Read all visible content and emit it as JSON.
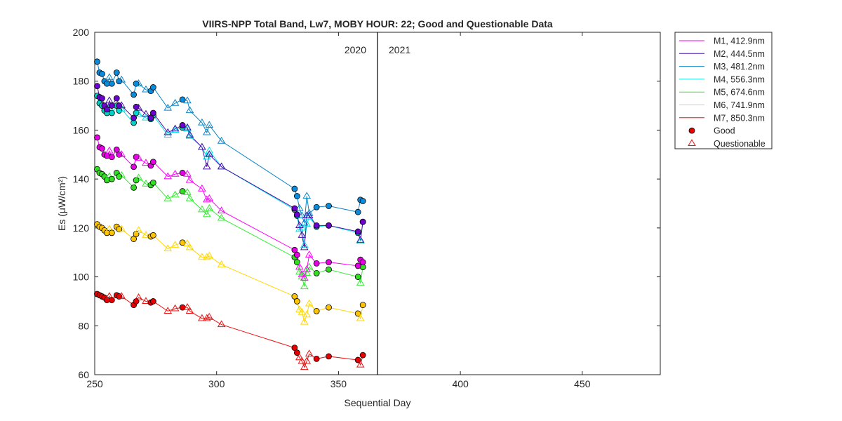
{
  "chart_data": {
    "type": "line",
    "title": "VIIRS-NPP Total Band,  Lw7, MOBY HOUR: 22;  Good and Questionable Data",
    "xlabel": "Sequential Day",
    "ylabel": "Es (μW/cm²)",
    "xlim": [
      250,
      482
    ],
    "ylim": [
      60,
      200
    ],
    "xticks": [
      250,
      300,
      350,
      400,
      450
    ],
    "yticks": [
      60,
      80,
      100,
      120,
      140,
      160,
      180,
      200
    ],
    "grid": false,
    "legend_position": "outside-right",
    "year_divider": {
      "x": 366,
      "labels": [
        "2020",
        "2021"
      ]
    },
    "legend_good": "Good",
    "legend_questionable": "Questionable",
    "marker_outline": "#000000",
    "series": [
      {
        "name": "M1, 412.9nm",
        "color": "#ff00ff",
        "fill": "#e600e6",
        "x": [
          251,
          252,
          253,
          254,
          255,
          256,
          257,
          259,
          260,
          261,
          266,
          267,
          268,
          271,
          273,
          274,
          280,
          283,
          286,
          288,
          289,
          294,
          296,
          297,
          302,
          332,
          333,
          334,
          335,
          336,
          337,
          338,
          341,
          346,
          358,
          359,
          360
        ],
        "y": [
          157,
          153,
          152.5,
          150,
          149.5,
          151.5,
          149,
          152,
          150,
          150,
          145,
          149,
          148.5,
          146.5,
          145.5,
          147,
          141,
          142,
          142.5,
          142,
          139.5,
          136,
          131.5,
          132,
          127,
          111,
          109,
          104,
          101,
          99.5,
          103,
          109,
          105.5,
          106,
          104.5,
          107,
          106
        ],
        "q": [
          0,
          0,
          0,
          0,
          0,
          1,
          0,
          0,
          0,
          1,
          0,
          0,
          1,
          1,
          0,
          0,
          1,
          1,
          0,
          1,
          1,
          1,
          1,
          1,
          1,
          0,
          0,
          1,
          1,
          1,
          1,
          1,
          0,
          0,
          0,
          0,
          0
        ]
      },
      {
        "name": "M2, 444.5nm",
        "color": "#4b0fa8",
        "fill": "#6e00d2",
        "x": [
          251,
          252,
          253,
          254,
          255,
          256,
          257,
          259,
          260,
          261,
          266,
          267,
          268,
          271,
          273,
          274,
          280,
          283,
          286,
          288,
          289,
          294,
          296,
          297,
          302,
          332,
          333,
          334,
          335,
          336,
          337,
          338,
          341,
          346,
          358,
          359,
          360
        ],
        "y": [
          178,
          173.5,
          173,
          170,
          168.5,
          172,
          170,
          173,
          170,
          170,
          165,
          169.5,
          169,
          166.5,
          165,
          167,
          159,
          160.5,
          162,
          161,
          158,
          153,
          145,
          150,
          145,
          128,
          125.5,
          121,
          117,
          112,
          125,
          125,
          121,
          121,
          118.5,
          115,
          122.5
        ],
        "q": [
          0,
          0,
          0,
          0,
          0,
          1,
          0,
          0,
          0,
          1,
          0,
          0,
          1,
          1,
          0,
          0,
          1,
          1,
          0,
          1,
          1,
          1,
          1,
          1,
          1,
          0,
          0,
          1,
          1,
          1,
          1,
          1,
          0,
          0,
          0,
          1,
          0
        ]
      },
      {
        "name": "M3, 481.2nm",
        "color": "#0b87c9",
        "fill": "#0a8cdc",
        "x": [
          251,
          252,
          253,
          254,
          255,
          256,
          257,
          259,
          260,
          261,
          266,
          267,
          268,
          271,
          273,
          274,
          280,
          283,
          286,
          288,
          289,
          294,
          296,
          297,
          302,
          332,
          333,
          334,
          335,
          336,
          337,
          338,
          341,
          346,
          358,
          359,
          360
        ],
        "y": [
          188,
          183.5,
          183,
          180,
          179,
          181.5,
          179,
          183.5,
          180,
          180.5,
          174.5,
          179,
          179,
          176.5,
          176,
          177.5,
          169,
          171,
          172.5,
          172,
          168,
          163,
          159,
          162,
          155.5,
          136,
          133,
          128,
          125,
          122,
          133,
          126,
          128.5,
          129,
          126.5,
          131.5,
          131
        ],
        "q": [
          0,
          0,
          0,
          0,
          0,
          1,
          0,
          0,
          0,
          1,
          0,
          0,
          1,
          1,
          0,
          0,
          1,
          1,
          0,
          1,
          1,
          1,
          1,
          1,
          1,
          0,
          0,
          1,
          1,
          1,
          1,
          1,
          0,
          0,
          0,
          0,
          0
        ]
      },
      {
        "name": "M4, 556.3nm",
        "color": "#00e6e6",
        "fill": "#00d2c8",
        "x": [
          251,
          252,
          253,
          254,
          255,
          256,
          257,
          259,
          260,
          261,
          266,
          267,
          268,
          271,
          273,
          274,
          280,
          283,
          286,
          288,
          289,
          294,
          296,
          297,
          302,
          332,
          333,
          334,
          335,
          336,
          337,
          338,
          341,
          346,
          358,
          359,
          360
        ],
        "y": [
          174,
          171,
          170,
          168,
          167,
          169,
          167,
          170,
          168,
          168.5,
          163,
          167,
          166.5,
          165,
          164.5,
          166,
          158,
          160,
          161,
          160.5,
          157.5,
          153,
          149,
          151.5,
          145,
          127.5,
          125,
          119.5,
          120,
          113,
          121.5,
          124.5,
          120.5,
          121,
          118,
          114.5,
          122.5
        ],
        "q": [
          0,
          0,
          0,
          0,
          0,
          1,
          0,
          0,
          0,
          1,
          0,
          0,
          1,
          1,
          0,
          0,
          1,
          1,
          0,
          1,
          1,
          1,
          1,
          1,
          1,
          0,
          0,
          1,
          1,
          1,
          1,
          1,
          0,
          0,
          0,
          1,
          0
        ]
      },
      {
        "name": "M5, 674.6nm",
        "color": "#33ee33",
        "fill": "#33dd22",
        "x": [
          251,
          252,
          253,
          254,
          255,
          256,
          257,
          259,
          260,
          261,
          266,
          267,
          268,
          271,
          273,
          274,
          280,
          283,
          286,
          288,
          289,
          294,
          296,
          297,
          302,
          332,
          333,
          334,
          335,
          336,
          337,
          338,
          341,
          346,
          358,
          359,
          360
        ],
        "y": [
          144,
          142.5,
          142,
          141,
          139.5,
          141,
          140,
          142.5,
          141,
          141.5,
          136.5,
          139.5,
          140.5,
          138,
          137.5,
          138.5,
          132,
          133.5,
          135,
          134.5,
          132,
          127.5,
          125.5,
          128,
          124,
          108,
          106,
          102,
          100,
          96,
          101.5,
          104,
          101.5,
          103,
          100,
          97.5,
          104
        ],
        "q": [
          0,
          0,
          0,
          0,
          0,
          1,
          0,
          0,
          0,
          1,
          0,
          0,
          1,
          1,
          0,
          0,
          1,
          1,
          0,
          1,
          1,
          1,
          1,
          1,
          1,
          0,
          0,
          1,
          1,
          1,
          1,
          1,
          0,
          0,
          0,
          1,
          0
        ]
      },
      {
        "name": "M6, 741.9nm",
        "color": "#ffd700",
        "fill": "#ffc400",
        "x": [
          251,
          252,
          253,
          254,
          255,
          256,
          257,
          259,
          260,
          261,
          266,
          267,
          268,
          271,
          273,
          274,
          280,
          283,
          286,
          288,
          289,
          294,
          296,
          297,
          302,
          332,
          333,
          334,
          335,
          336,
          337,
          338,
          341,
          346,
          358,
          359,
          360
        ],
        "y": [
          121.5,
          120.5,
          120,
          119,
          118,
          119.5,
          118,
          120.5,
          119.5,
          119.5,
          115.5,
          117.5,
          119,
          117,
          116.5,
          117,
          111.5,
          113,
          114,
          113.5,
          112,
          108,
          108,
          108.5,
          105,
          92,
          90,
          86.5,
          85.5,
          81.5,
          84.5,
          89,
          86,
          87.5,
          85,
          83,
          88.5
        ],
        "q": [
          0,
          0,
          0,
          0,
          0,
          1,
          0,
          0,
          0,
          1,
          0,
          0,
          1,
          1,
          0,
          0,
          1,
          1,
          0,
          1,
          1,
          1,
          1,
          1,
          1,
          0,
          0,
          1,
          1,
          1,
          1,
          1,
          0,
          0,
          0,
          1,
          0
        ]
      },
      {
        "name": "M7, 850.3nm",
        "color": "#ee1111",
        "fill": "#e60000",
        "x": [
          251,
          252,
          253,
          254,
          255,
          256,
          257,
          259,
          260,
          261,
          266,
          267,
          268,
          271,
          273,
          274,
          280,
          283,
          286,
          288,
          289,
          294,
          296,
          297,
          302,
          332,
          333,
          334,
          335,
          336,
          337,
          338,
          341,
          346,
          358,
          359,
          360
        ],
        "y": [
          93,
          92.5,
          92,
          91.5,
          90.5,
          92,
          90.5,
          92.5,
          92,
          92,
          88.5,
          90,
          91.5,
          90,
          89.5,
          90,
          86,
          87,
          87.5,
          87.5,
          86,
          83,
          83,
          83.5,
          80.5,
          71,
          69,
          67,
          65.5,
          63,
          65.5,
          68.5,
          66.5,
          67.5,
          66,
          64,
          68
        ],
        "q": [
          0,
          0,
          0,
          0,
          0,
          1,
          0,
          0,
          0,
          1,
          0,
          0,
          1,
          1,
          0,
          0,
          1,
          1,
          0,
          1,
          1,
          1,
          1,
          1,
          1,
          0,
          0,
          1,
          1,
          1,
          1,
          1,
          0,
          0,
          0,
          1,
          0
        ]
      }
    ]
  }
}
